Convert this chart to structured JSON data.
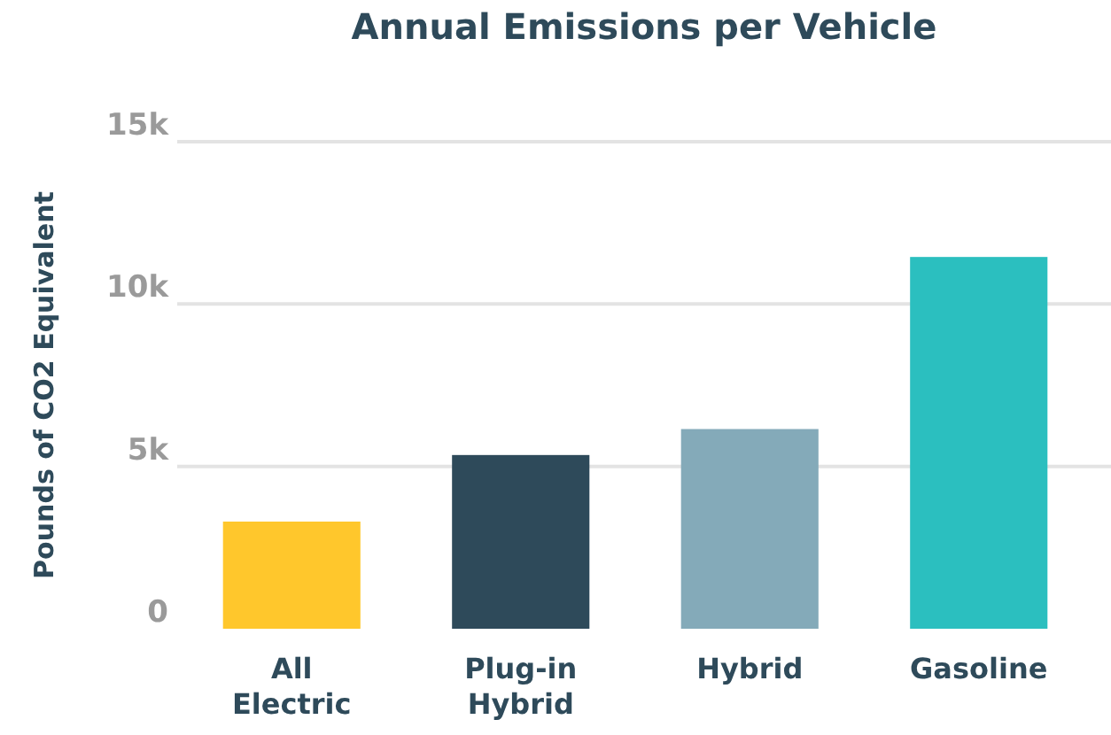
{
  "chart_data": {
    "type": "bar",
    "title": "Annual Emissions per Vehicle",
    "ylabel": "Pounds of CO2 Equivalent",
    "categories": [
      "All Electric",
      "Plug-in Hybrid",
      "Hybrid",
      "Gasoline"
    ],
    "values": [
      3300,
      5350,
      6150,
      11450
    ],
    "colors": [
      "#ffc72c",
      "#2e4a5a",
      "#84aab9",
      "#2bbfbf"
    ],
    "ylim": [
      0,
      15000
    ],
    "yticks": [
      {
        "value": 0,
        "label": "0"
      },
      {
        "value": 5000,
        "label": "5k"
      },
      {
        "value": 10000,
        "label": "10k"
      },
      {
        "value": 15000,
        "label": "15k"
      }
    ],
    "grid": "y"
  }
}
